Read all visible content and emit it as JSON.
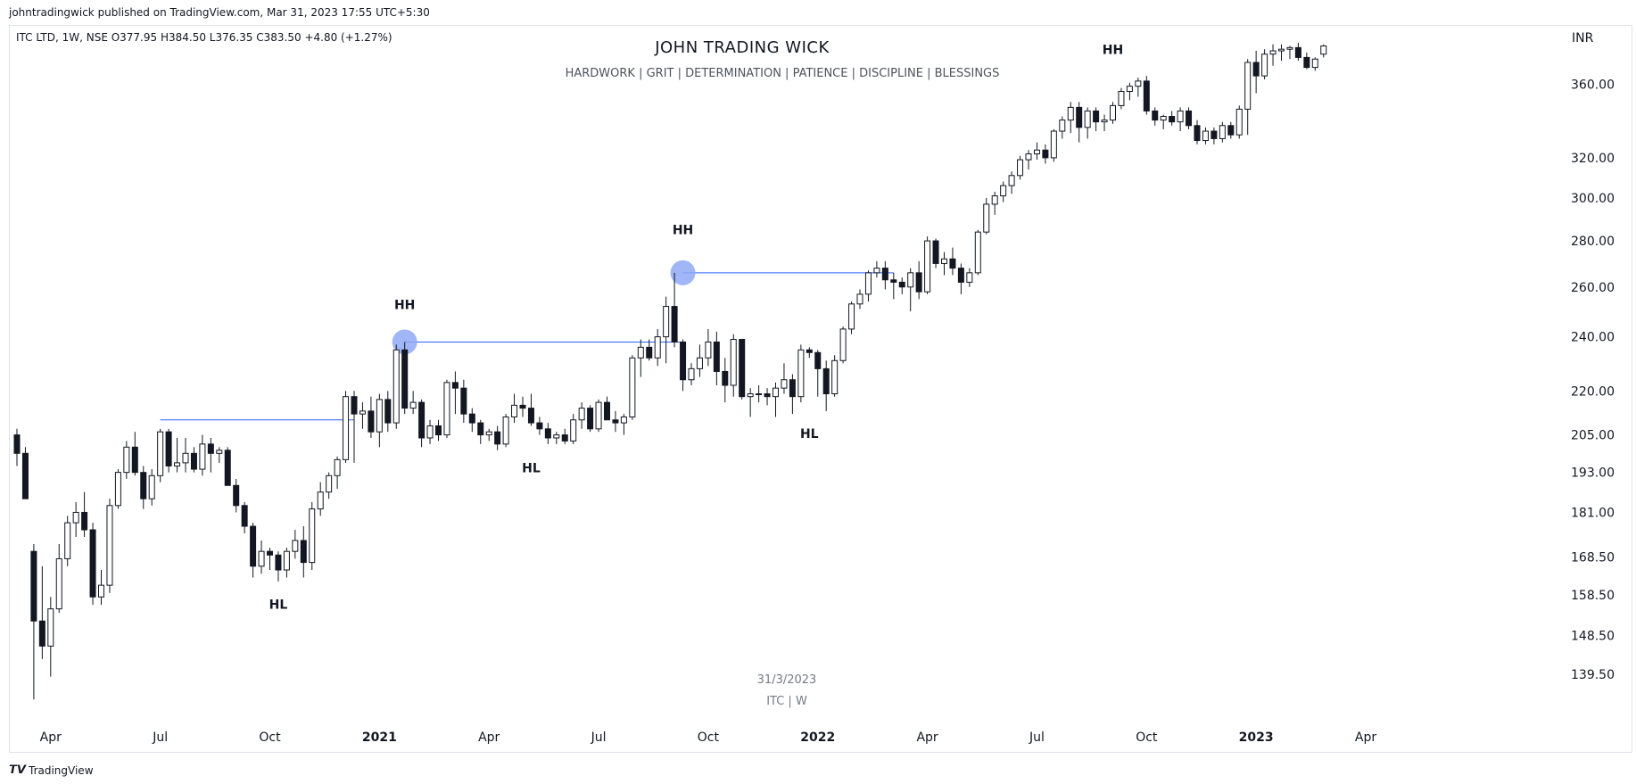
{
  "published_by": "johntradingwick published on TradingView.com, Mar 31, 2023 17:55 UTC+5:30",
  "branding": {
    "logo": "𝙏𝙑",
    "name": "TradingView"
  },
  "symbol_info": "ITC LTD, 1W, NSE  O377.95  H384.50  L376.35  C383.50  +4.80 (+1.27%)",
  "watermark": {
    "date": "31/3/2023",
    "symbol": "ITC | W"
  },
  "colors": {
    "bull_fill": "#ffffff",
    "bear_fill": "#131722",
    "wick": "#131722",
    "level_line": "#2962ff",
    "highlight": "#8fa9f5"
  },
  "chart_data": {
    "type": "candlestick",
    "title": "JOHN TRADING WICK",
    "subtitle": "HARDWORK   |   GRIT  |   DETERMINATION   |   PATIENCE   |   DISCIPLINE  |  BLESSINGS",
    "currency": "INR",
    "y_scale": "log",
    "ylim": [
      131,
      395
    ],
    "y_ticks": [
      "139.50",
      "148.50",
      "158.50",
      "168.50",
      "181.00",
      "193.00",
      "205.00",
      "220.00",
      "240.00",
      "260.00",
      "280.00",
      "300.00",
      "320.00",
      "360.00"
    ],
    "x_labels": [
      {
        "label": "Apr",
        "week": 4,
        "bold": false
      },
      {
        "label": "Jul",
        "week": 17,
        "bold": false
      },
      {
        "label": "Oct",
        "week": 30,
        "bold": false
      },
      {
        "label": "2021",
        "week": 43,
        "bold": true
      },
      {
        "label": "Apr",
        "week": 56,
        "bold": false
      },
      {
        "label": "Jul",
        "week": 69,
        "bold": false
      },
      {
        "label": "Oct",
        "week": 82,
        "bold": false
      },
      {
        "label": "2022",
        "week": 95,
        "bold": true
      },
      {
        "label": "Apr",
        "week": 108,
        "bold": false
      },
      {
        "label": "Jul",
        "week": 121,
        "bold": false
      },
      {
        "label": "Oct",
        "week": 134,
        "bold": false
      },
      {
        "label": "2023",
        "week": 147,
        "bold": true
      },
      {
        "label": "Apr",
        "week": 160,
        "bold": false
      }
    ],
    "ohlc": [
      [
        205,
        207,
        195,
        199
      ],
      [
        199,
        201,
        185,
        185
      ],
      [
        170,
        172,
        134,
        152
      ],
      [
        152,
        166,
        143,
        146
      ],
      [
        146,
        158,
        139,
        155
      ],
      [
        155,
        172,
        154,
        168
      ],
      [
        168,
        180,
        166,
        178
      ],
      [
        178,
        184,
        174,
        181
      ],
      [
        181,
        187,
        174,
        176
      ],
      [
        176,
        178,
        156,
        158
      ],
      [
        158,
        165,
        156,
        161
      ],
      [
        161,
        185,
        159,
        183
      ],
      [
        183,
        194,
        182,
        193
      ],
      [
        193,
        203,
        191,
        201
      ],
      [
        201,
        206,
        192,
        193
      ],
      [
        193,
        195,
        182,
        185
      ],
      [
        185,
        194,
        183,
        192
      ],
      [
        192,
        207,
        190,
        206
      ],
      [
        206,
        207,
        193,
        195
      ],
      [
        195,
        204,
        193,
        196
      ],
      [
        196,
        204,
        193,
        199
      ],
      [
        199,
        201,
        193,
        194
      ],
      [
        194,
        205,
        192,
        202
      ],
      [
        202,
        204,
        193,
        199
      ],
      [
        199,
        201,
        196,
        200
      ],
      [
        200,
        201,
        189,
        189
      ],
      [
        189,
        191,
        181,
        183
      ],
      [
        183,
        184,
        175,
        177
      ],
      [
        177,
        178,
        163,
        166
      ],
      [
        166,
        173,
        164,
        170
      ],
      [
        170,
        171,
        165,
        169
      ],
      [
        169,
        170,
        162,
        165
      ],
      [
        165,
        171,
        163,
        170
      ],
      [
        170,
        176,
        168,
        173
      ],
      [
        173,
        177,
        163,
        167
      ],
      [
        167,
        184,
        165,
        182
      ],
      [
        182,
        190,
        180,
        187
      ],
      [
        187,
        193,
        185,
        192
      ],
      [
        192,
        198,
        188,
        197
      ],
      [
        197,
        220,
        196,
        218
      ],
      [
        218,
        220,
        196,
        212
      ],
      [
        212,
        216,
        207,
        213
      ],
      [
        213,
        218,
        204,
        206
      ],
      [
        206,
        219,
        201,
        217
      ],
      [
        217,
        220,
        206,
        209
      ],
      [
        209,
        237,
        207,
        235
      ],
      [
        235,
        238,
        212,
        214
      ],
      [
        214,
        220,
        212,
        216
      ],
      [
        216,
        217,
        201,
        204
      ],
      [
        204,
        210,
        202,
        208
      ],
      [
        208,
        210,
        203,
        205
      ],
      [
        205,
        224,
        204,
        223
      ],
      [
        223,
        227,
        212,
        221
      ],
      [
        221,
        224,
        209,
        212
      ],
      [
        212,
        214,
        206,
        209
      ],
      [
        209,
        210,
        202,
        205
      ],
      [
        205,
        207,
        203,
        206
      ],
      [
        206,
        208,
        200,
        202
      ],
      [
        202,
        212,
        201,
        211
      ],
      [
        211,
        219,
        209,
        215
      ],
      [
        215,
        218,
        211,
        214
      ],
      [
        214,
        219,
        208,
        209
      ],
      [
        209,
        211,
        205,
        207
      ],
      [
        207,
        209,
        202,
        204
      ],
      [
        204,
        206,
        202,
        205
      ],
      [
        205,
        207,
        202,
        203
      ],
      [
        203,
        212,
        202,
        210
      ],
      [
        210,
        216,
        207,
        214
      ],
      [
        214,
        215,
        206,
        207
      ],
      [
        207,
        217,
        206,
        216
      ],
      [
        216,
        218,
        210,
        210
      ],
      [
        210,
        213,
        206,
        209
      ],
      [
        209,
        212,
        205,
        211
      ],
      [
        211,
        233,
        210,
        232
      ],
      [
        232,
        239,
        225,
        236
      ],
      [
        236,
        239,
        231,
        232
      ],
      [
        232,
        243,
        229,
        240
      ],
      [
        240,
        256,
        230,
        252
      ],
      [
        252,
        266,
        236,
        238
      ],
      [
        238,
        239,
        220,
        224
      ],
      [
        224,
        230,
        222,
        228
      ],
      [
        228,
        237,
        225,
        232
      ],
      [
        232,
        243,
        229,
        238
      ],
      [
        238,
        242,
        222,
        227
      ],
      [
        227,
        232,
        216,
        222
      ],
      [
        222,
        241,
        218,
        239
      ],
      [
        239,
        239,
        217,
        218
      ],
      [
        218,
        221,
        211,
        219
      ],
      [
        219,
        222,
        216,
        219
      ],
      [
        219,
        221,
        215,
        218
      ],
      [
        218,
        223,
        211,
        221
      ],
      [
        221,
        230,
        219,
        224
      ],
      [
        224,
        226,
        212,
        218
      ],
      [
        218,
        237,
        216,
        235
      ],
      [
        235,
        236,
        232,
        234
      ],
      [
        234,
        235,
        218,
        228
      ],
      [
        228,
        231,
        213,
        219
      ],
      [
        219,
        233,
        218,
        231
      ],
      [
        231,
        244,
        230,
        243
      ],
      [
        243,
        254,
        241,
        253
      ],
      [
        253,
        259,
        251,
        257
      ],
      [
        257,
        267,
        254,
        266
      ],
      [
        266,
        271,
        264,
        268
      ],
      [
        268,
        271,
        259,
        263
      ],
      [
        263,
        266,
        255,
        262
      ],
      [
        262,
        264,
        257,
        260
      ],
      [
        260,
        268,
        250,
        266
      ],
      [
        266,
        271,
        255,
        258
      ],
      [
        258,
        282,
        257,
        280
      ],
      [
        280,
        281,
        268,
        270
      ],
      [
        270,
        275,
        265,
        272
      ],
      [
        272,
        277,
        265,
        268
      ],
      [
        268,
        270,
        257,
        262
      ],
      [
        262,
        268,
        260,
        266
      ],
      [
        266,
        285,
        265,
        284
      ],
      [
        284,
        300,
        283,
        297
      ],
      [
        297,
        303,
        292,
        301
      ],
      [
        301,
        308,
        298,
        306
      ],
      [
        306,
        313,
        302,
        311
      ],
      [
        311,
        321,
        309,
        319
      ],
      [
        319,
        324,
        314,
        322
      ],
      [
        322,
        328,
        319,
        324
      ],
      [
        324,
        327,
        317,
        320
      ],
      [
        320,
        335,
        318,
        334
      ],
      [
        334,
        342,
        330,
        340
      ],
      [
        340,
        350,
        333,
        347
      ],
      [
        347,
        350,
        328,
        336
      ],
      [
        336,
        347,
        330,
        345
      ],
      [
        345,
        347,
        334,
        339
      ],
      [
        339,
        343,
        334,
        340
      ],
      [
        340,
        350,
        338,
        348
      ],
      [
        348,
        358,
        346,
        356
      ],
      [
        356,
        361,
        351,
        359
      ],
      [
        359,
        364,
        353,
        362
      ],
      [
        362,
        365,
        343,
        345
      ],
      [
        345,
        347,
        337,
        340
      ],
      [
        340,
        343,
        335,
        342
      ],
      [
        342,
        345,
        337,
        339
      ],
      [
        339,
        347,
        334,
        345
      ],
      [
        345,
        347,
        335,
        337
      ],
      [
        337,
        340,
        327,
        329
      ],
      [
        329,
        336,
        327,
        334
      ],
      [
        334,
        336,
        327,
        330
      ],
      [
        330,
        339,
        328,
        337
      ],
      [
        337,
        339,
        330,
        332
      ],
      [
        332,
        348,
        330,
        346
      ],
      [
        346,
        375,
        332,
        373
      ],
      [
        373,
        380,
        355,
        365
      ],
      [
        365,
        381,
        363,
        378
      ],
      [
        378,
        384,
        371,
        380
      ],
      [
        380,
        384,
        374,
        381
      ],
      [
        381,
        383,
        375,
        382
      ],
      [
        382,
        385,
        374,
        376
      ],
      [
        376,
        379,
        369,
        370
      ],
      [
        370,
        376,
        368,
        375
      ],
      [
        378,
        384,
        376,
        383
      ]
    ],
    "levels": [
      {
        "price": 210,
        "from": 17,
        "to": 40
      },
      {
        "price": 238,
        "from": 46,
        "to": 79
      },
      {
        "price": 266,
        "from": 79,
        "to": 104
      }
    ],
    "highlights": [
      {
        "week": 46,
        "price": 238
      },
      {
        "week": 79,
        "price": 266
      }
    ],
    "annotations": [
      {
        "text": "HH",
        "week": 46,
        "price": 251
      },
      {
        "text": "HH",
        "week": 79,
        "price": 283
      },
      {
        "text": "HH",
        "week": 130,
        "price": 378
      },
      {
        "text": "HL",
        "week": 31,
        "price": 155
      },
      {
        "text": "HL",
        "week": 61,
        "price": 193
      },
      {
        "text": "HL",
        "week": 94,
        "price": 204
      }
    ]
  }
}
